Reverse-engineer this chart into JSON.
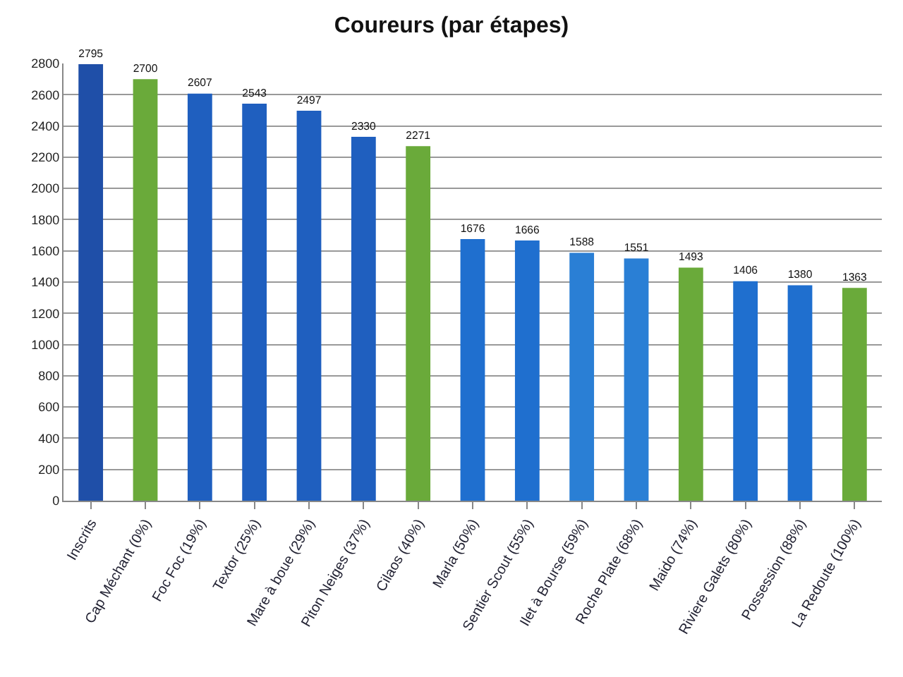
{
  "chart_data": {
    "type": "bar",
    "title": "Coureurs (par étapes)",
    "categories": [
      "Inscrits",
      "Cap Méchant (0%)",
      "Foc Foc (19%)",
      "Textor (25%)",
      "Mare à boue (29%)",
      "Piton Neiges (37%)",
      "Cilaos (40%)",
      "Marla (50%)",
      "Sentier Scout (55%)",
      "Ilet à Bourse (59%)",
      "Roche Plate (68%)",
      "Maido (74%)",
      "Riviere Galets (80%)",
      "Possession (88%)",
      "La Redoute (100%)"
    ],
    "values": [
      2795,
      2700,
      2607,
      2543,
      2497,
      2330,
      2271,
      1676,
      1666,
      1588,
      1551,
      1493,
      1406,
      1380,
      1363
    ],
    "colors": [
      "#1f4fa8",
      "#6aaa3a",
      "#1f5fbf",
      "#1f5fbf",
      "#1f5fbf",
      "#1f5fbf",
      "#6aaa3a",
      "#1f6fcf",
      "#1f6fcf",
      "#2a7fd5",
      "#2a7fd5",
      "#6aaa3a",
      "#1f6fcf",
      "#1f6fcf",
      "#6aaa3a"
    ],
    "ylim": [
      0,
      2800
    ],
    "yticks": [
      0,
      200,
      400,
      600,
      800,
      1000,
      1200,
      1400,
      1600,
      1800,
      2000,
      2200,
      2400,
      2600,
      2800
    ],
    "grid": "y",
    "data_labels": true,
    "legend": false
  }
}
